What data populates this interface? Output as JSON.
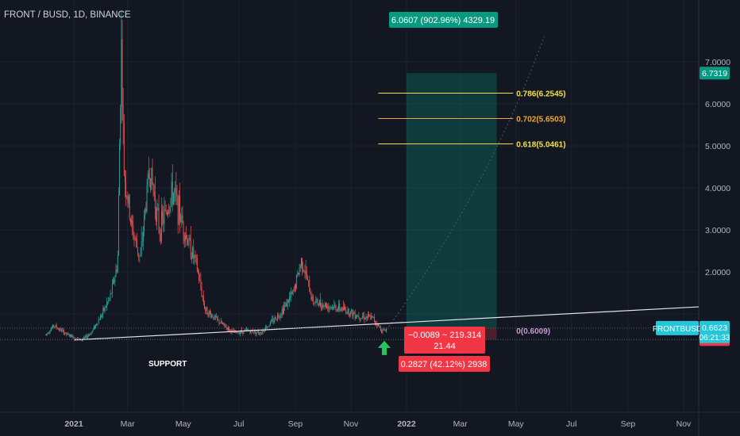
{
  "symbol_title": "FRONT / BUSD, 1D, BINANCE",
  "chart_data": {
    "type": "candlestick",
    "title": "FRONT / BUSD, 1D, BINANCE",
    "price_axis": {
      "ticks": [
        "7.0000",
        "6.0000",
        "5.0000",
        "4.0000",
        "3.0000",
        "2.0000"
      ],
      "scale": "linear",
      "ylim": [
        0.1,
        7.5
      ]
    },
    "time_axis": {
      "ticks": [
        "2021",
        "Mar",
        "May",
        "Jul",
        "Sep",
        "Nov",
        "2022",
        "Mar",
        "May",
        "Jul",
        "Sep",
        "Nov"
      ]
    },
    "price_path": [
      [
        "2020-12-01",
        0.5
      ],
      [
        "2020-12-10",
        0.72
      ],
      [
        "2020-12-25",
        0.5
      ],
      [
        "2021-01-10",
        0.38
      ],
      [
        "2021-01-20",
        0.55
      ],
      [
        "2021-02-01",
        1.0
      ],
      [
        "2021-02-10",
        1.4
      ],
      [
        "2021-02-18",
        2.2
      ],
      [
        "2021-02-22",
        7.5
      ],
      [
        "2021-02-25",
        4.4
      ],
      [
        "2021-03-05",
        3.1
      ],
      [
        "2021-03-15",
        2.3
      ],
      [
        "2021-03-25",
        4.5
      ],
      [
        "2021-04-05",
        3.0
      ],
      [
        "2021-04-20",
        3.9
      ],
      [
        "2021-05-05",
        2.8
      ],
      [
        "2021-05-15",
        2.2
      ],
      [
        "2021-05-25",
        1.1
      ],
      [
        "2021-06-10",
        0.8
      ],
      [
        "2021-06-25",
        0.55
      ],
      [
        "2021-07-10",
        0.6
      ],
      [
        "2021-07-25",
        0.55
      ],
      [
        "2021-08-15",
        1.0
      ],
      [
        "2021-08-30",
        1.5
      ],
      [
        "2021-09-08",
        2.3
      ],
      [
        "2021-09-20",
        1.3
      ],
      [
        "2021-10-05",
        1.2
      ],
      [
        "2021-10-25",
        1.1
      ],
      [
        "2021-11-10",
        0.95
      ],
      [
        "2021-11-25",
        0.9
      ],
      [
        "2021-12-05",
        0.6
      ],
      [
        "2021-12-10",
        0.62
      ]
    ],
    "support_line": {
      "label": "SUPPORT",
      "from": [
        "2021-01-01",
        0.38
      ],
      "to": [
        "2022-12-15",
        1.2
      ]
    },
    "fib_levels": [
      {
        "label": "0.786(6.2545)",
        "value": 6.2545,
        "color": "#f5e042"
      },
      {
        "label": "0.702(5.6503)",
        "value": 5.6503,
        "color": "#f0a830"
      },
      {
        "label": "0.618(5.0461)",
        "value": 5.0461,
        "color": "#f5e042"
      },
      {
        "label": "0(0.6009)",
        "value": 0.6009,
        "color": "#c39bd3"
      }
    ],
    "long_position": {
      "entry": 0.6712,
      "target": 6.7319,
      "stop": 0.3885,
      "profit_label": "6.0607 (902.96%) 4329.19",
      "stop_label": "0.2827 (42.12%) 2938",
      "ratio_label": "−0.0089 ~ 219.314",
      "rr_label": "21.44"
    },
    "price_badges": [
      {
        "value": "6.7319",
        "color": "#089981"
      },
      {
        "value": "0.6712",
        "color": "#787b86"
      },
      {
        "value": "0.3885",
        "color": "#f23645"
      }
    ],
    "current_price": {
      "symbol": "FRONTBUSD",
      "value": "0.6623",
      "countdown": "06:21:33"
    },
    "colors": {
      "up": "#26a69a",
      "down": "#ef5350",
      "background": "#131722",
      "arrow": "#22c55e"
    }
  }
}
